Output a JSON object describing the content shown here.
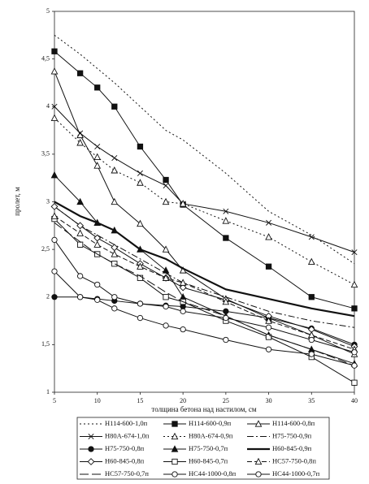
{
  "chart_data": {
    "type": "line",
    "x_label": "толщина бетона над настилом, см",
    "y_label": "пролет, м",
    "x": [
      5,
      8,
      10,
      12,
      15,
      18,
      20,
      25,
      30,
      35,
      40
    ],
    "xlim": [
      5,
      40
    ],
    "xticks": [
      5,
      10,
      15,
      20,
      25,
      30,
      35,
      40
    ],
    "ylim": [
      1,
      5
    ],
    "yticks": [
      1,
      {
        "value": 1.5,
        "label": "1,5"
      },
      2,
      {
        "value": 2.5,
        "label": "2,5"
      },
      3,
      {
        "value": 3.5,
        "label": "3,5"
      },
      4,
      {
        "value": 4.5,
        "label": "4,5"
      },
      5
    ],
    "grid": false,
    "legend": "bottom",
    "series": [
      {
        "name": "Н114-600-1,0п",
        "color": "#111",
        "dash": "dotted",
        "marker": "none",
        "values": [
          4.75,
          4.55,
          4.4,
          4.25,
          4.0,
          3.75,
          3.65,
          3.3,
          2.9,
          2.65,
          2.35
        ]
      },
      {
        "name": "Н114-600-0,9п",
        "color": "#111",
        "dash": "solid",
        "marker": "square-filled",
        "values": [
          4.58,
          4.35,
          4.2,
          4.0,
          3.58,
          3.23,
          2.97,
          2.62,
          2.32,
          2.0,
          1.88
        ]
      },
      {
        "name": "Н114-600-0,8п",
        "color": "#111",
        "dash": "solid",
        "marker": "triangle-open",
        "values": [
          4.37,
          3.7,
          3.38,
          3.0,
          2.77,
          2.5,
          2.28,
          1.98,
          1.78,
          1.6,
          1.4
        ]
      },
      {
        "name": "Н80А-674-1,0п",
        "color": "#111",
        "dash": "solid",
        "marker": "x",
        "values": [
          4.0,
          3.72,
          3.58,
          3.46,
          3.3,
          3.17,
          2.98,
          2.9,
          2.78,
          2.63,
          2.47
        ]
      },
      {
        "name": "Н80А-674-0,9п",
        "color": "#111",
        "dash": "dotted",
        "marker": "triangle-open",
        "values": [
          3.88,
          3.62,
          3.47,
          3.33,
          3.2,
          3.0,
          2.98,
          2.8,
          2.63,
          2.37,
          2.13
        ]
      },
      {
        "name": "Н75-750-0,9п",
        "color": "#111",
        "dash": "dashdot",
        "marker": "none",
        "values": [
          2.95,
          2.75,
          2.65,
          2.55,
          2.4,
          2.25,
          2.15,
          2.0,
          1.85,
          1.75,
          1.68
        ]
      },
      {
        "name": "Н75-750-0,8п",
        "color": "#111",
        "dash": "solid",
        "marker": "circle-filled",
        "values": [
          2.0,
          2.0,
          1.98,
          1.96,
          1.93,
          1.91,
          1.9,
          1.85,
          1.78,
          1.67,
          1.5
        ]
      },
      {
        "name": "Н75-750-0,7п",
        "color": "#111",
        "dash": "solid",
        "marker": "triangle-filled",
        "values": [
          3.28,
          3.0,
          2.78,
          2.7,
          2.5,
          2.28,
          2.0,
          1.8,
          1.6,
          1.45,
          1.3
        ]
      },
      {
        "name": "Н60-845-0,9п",
        "color": "#111",
        "dash": "thick",
        "marker": "none",
        "values": [
          3.0,
          2.85,
          2.78,
          2.7,
          2.5,
          2.4,
          2.3,
          2.08,
          1.98,
          1.88,
          1.8
        ]
      },
      {
        "name": "Н60-845-0,8п",
        "color": "#111",
        "dash": "solid",
        "marker": "diamond-open",
        "values": [
          2.95,
          2.75,
          2.62,
          2.52,
          2.35,
          2.2,
          2.1,
          1.97,
          1.8,
          1.66,
          1.48
        ]
      },
      {
        "name": "Н60-845-0,7п",
        "color": "#111",
        "dash": "solid",
        "marker": "square-open",
        "values": [
          2.82,
          2.55,
          2.45,
          2.35,
          2.2,
          2.0,
          1.95,
          1.75,
          1.58,
          1.37,
          1.1
        ]
      },
      {
        "name": "НС57-750-0,8п",
        "color": "#111",
        "dash": "dashed",
        "marker": "triangle-open",
        "values": [
          2.85,
          2.67,
          2.55,
          2.45,
          2.32,
          2.2,
          2.15,
          1.95,
          1.75,
          1.6,
          1.45
        ]
      },
      {
        "name": "НС57-750-0,7п",
        "color": "#111",
        "dash": "longdash",
        "marker": "none",
        "values": [
          2.78,
          2.58,
          2.45,
          2.35,
          2.22,
          2.05,
          1.95,
          1.8,
          1.6,
          1.45,
          1.28
        ]
      },
      {
        "name": "НС44-1000-0,8п",
        "color": "#111",
        "dash": "solid",
        "marker": "circle-open",
        "values": [
          2.6,
          2.22,
          2.13,
          2.0,
          1.93,
          1.9,
          1.85,
          1.78,
          1.68,
          1.55,
          1.42
        ]
      },
      {
        "name": "НС44-1000-0,7п",
        "color": "#111",
        "dash": "solid",
        "marker": "circle-open",
        "values": [
          2.27,
          2.0,
          1.97,
          1.88,
          1.78,
          1.7,
          1.66,
          1.55,
          1.45,
          1.4,
          1.28
        ]
      }
    ]
  }
}
